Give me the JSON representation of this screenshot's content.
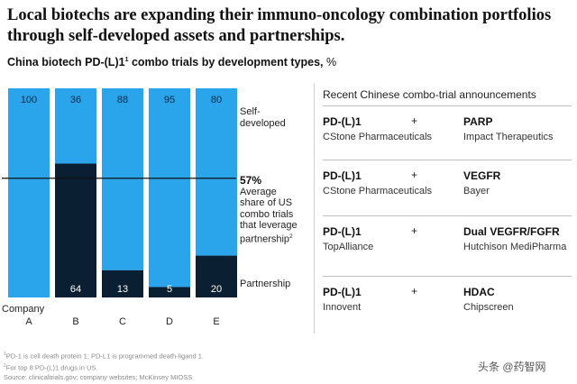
{
  "headline": "Local biotechs are expanding their immuno-oncology combination portfolios through self-developed assets and partnerships.",
  "chart_data": {
    "type": "bar",
    "stacked": true,
    "title": "China biotech PD-(L)1",
    "title_sup": "1",
    "title_suffix": " combo trials by development types,",
    "title_unit": "%",
    "xlabel": "Company",
    "categories": [
      "A",
      "B",
      "C",
      "D",
      "E"
    ],
    "ylim": [
      0,
      100
    ],
    "series": [
      {
        "name": "Self-developed",
        "values": [
          100,
          36,
          88,
          95,
          80
        ],
        "color": "#2aa4ea",
        "label_color": "#0b2a4a"
      },
      {
        "name": "Partnership",
        "values": [
          0,
          64,
          13,
          5,
          20
        ],
        "color": "#0b1f33",
        "label_color": "#ffffff"
      }
    ],
    "reference": {
      "value_label": "57%",
      "text_lines": [
        "Average",
        "share of US",
        "combo trials",
        "that leverage",
        "partnership"
      ],
      "text_sup": "2",
      "value": 57,
      "line_color": "#111111"
    }
  },
  "panel": {
    "title": "Recent Chinese combo-trial announcements",
    "plus": "+",
    "rows": [
      {
        "drug1": "PD-(L)1",
        "company1": "CStone Pharmaceuticals",
        "drug2": "PARP",
        "company2": "Impact Therapeutics"
      },
      {
        "drug1": "PD-(L)1",
        "company1": "CStone Pharmaceuticals",
        "drug2": "VEGFR",
        "company2": "Bayer"
      },
      {
        "drug1": "PD-(L)1",
        "company1": "TopAlliance",
        "drug2": "Dual VEGFR/FGFR",
        "company2": "Hutchison MediPharma"
      },
      {
        "drug1": "PD-(L)1",
        "company1": "Innovent",
        "drug2": "HDAC",
        "company2": "Chipscreen"
      }
    ]
  },
  "footnotes": {
    "f1_sup": "1",
    "f1": "PD-1 is cell death protein 1; PD-L1 is programmed death-ligand 1.",
    "f2_sup": "2",
    "f2": "For top 8 PD-(L)1 drugs in US.",
    "source": "Source: clinicaltrials.gov; company websites; McKinsey MIOSS"
  },
  "watermark": "头条 @药智网"
}
